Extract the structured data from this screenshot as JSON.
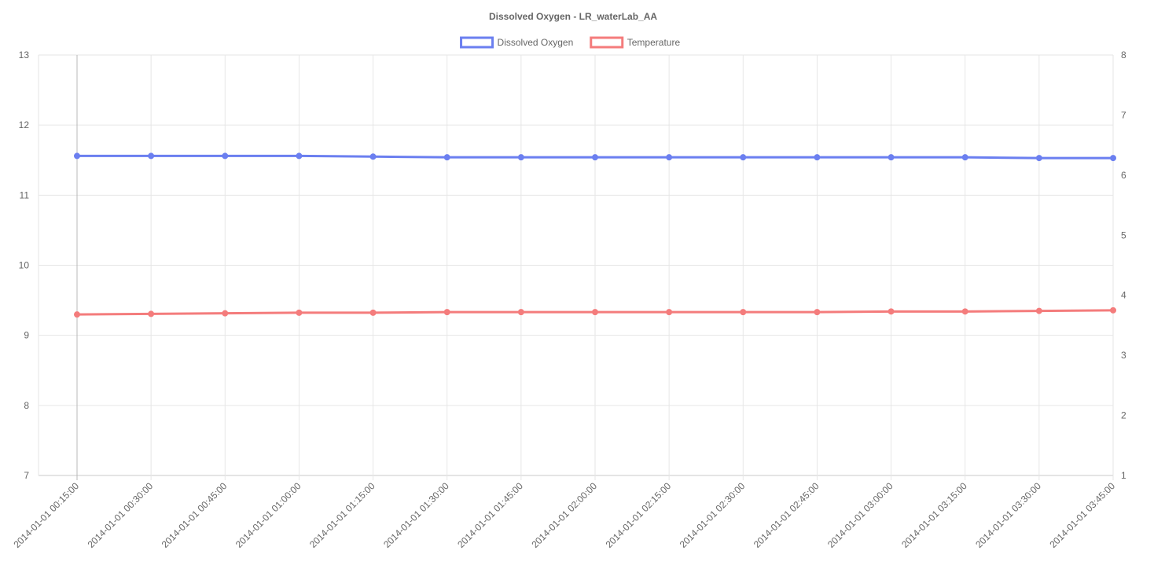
{
  "chart_data": {
    "type": "line",
    "title": "Dissolved Oxygen - LR_waterLab_AA",
    "x": [
      "2014-01-01 00:15:00",
      "2014-01-01 00:30:00",
      "2014-01-01 00:45:00",
      "2014-01-01 01:00:00",
      "2014-01-01 01:15:00",
      "2014-01-01 01:30:00",
      "2014-01-01 01:45:00",
      "2014-01-01 02:00:00",
      "2014-01-01 02:15:00",
      "2014-01-01 02:30:00",
      "2014-01-01 02:45:00",
      "2014-01-01 03:00:00",
      "2014-01-01 03:15:00",
      "2014-01-01 03:30:00",
      "2014-01-01 03:45:00"
    ],
    "series": [
      {
        "name": "Dissolved Oxygen",
        "axis": "left",
        "color": "#6b7ff0",
        "values": [
          11.56,
          11.56,
          11.56,
          11.56,
          11.55,
          11.54,
          11.54,
          11.54,
          11.54,
          11.54,
          11.54,
          11.54,
          11.54,
          11.53,
          11.53
        ]
      },
      {
        "name": "Temperature",
        "axis": "right",
        "color": "#f47c7c",
        "values": [
          3.68,
          3.69,
          3.7,
          3.71,
          3.71,
          3.72,
          3.72,
          3.72,
          3.72,
          3.72,
          3.72,
          3.73,
          3.73,
          3.74,
          3.75
        ]
      }
    ],
    "ylim_left": [
      7,
      13
    ],
    "yticks_left": [
      7,
      8,
      9,
      10,
      11,
      12,
      13
    ],
    "ylim_right": [
      1,
      8
    ],
    "yticks_right": [
      1,
      2,
      3,
      4,
      5,
      6,
      7,
      8
    ],
    "grid": true,
    "legend_position": "top-center"
  }
}
